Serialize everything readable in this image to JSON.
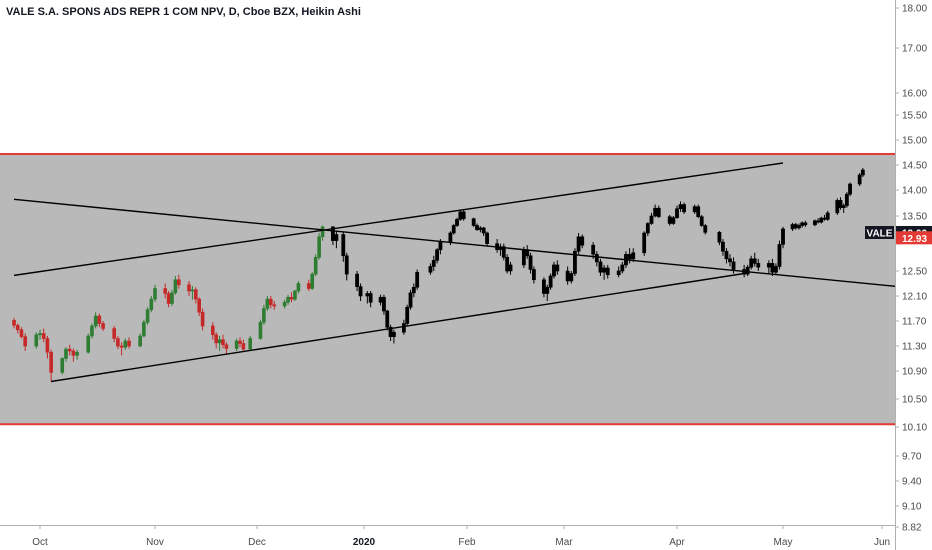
{
  "chart_data": {
    "type": "candlestick",
    "title": "VALE S.A. SPONS ADS REPR 1 COM NPV, D, Cboe BZX, Heikin Ashi",
    "y_ticks": [
      "18.00",
      "17.00",
      "16.00",
      "15.50",
      "15.00",
      "14.50",
      "14.00",
      "13.50",
      "12.50",
      "12.10",
      "11.70",
      "11.30",
      "10.90",
      "10.50",
      "10.10",
      "9.70",
      "9.40",
      "9.10",
      "8.82"
    ],
    "x_ticks": [
      {
        "label": "Oct",
        "bold": false
      },
      {
        "label": "Nov",
        "bold": false
      },
      {
        "label": "Dec",
        "bold": false
      },
      {
        "label": "2020",
        "bold": true
      },
      {
        "label": "Feb",
        "bold": false
      },
      {
        "label": "Mar",
        "bold": false
      },
      {
        "label": "Apr",
        "bold": false
      },
      {
        "label": "May",
        "bold": false
      },
      {
        "label": "Jun",
        "bold": false
      }
    ],
    "ylim": [
      8.82,
      18.2
    ],
    "price_labels": [
      {
        "symbol": "VALE",
        "value": "13.00",
        "color": "#131722"
      },
      {
        "symbol": "",
        "value": "12.93",
        "color": "#e53935"
      }
    ],
    "range_band": {
      "upper": 14.72,
      "lower": 10.14,
      "color": "#b9b9b9",
      "border_color": "#e53935"
    },
    "trendlines": [
      {
        "from": [
          "2019-09-24",
          13.82
        ],
        "to": [
          "2020-06-10",
          12.23
        ]
      },
      {
        "from": [
          "2019-09-24",
          12.43
        ],
        "to": [
          "2020-05-01",
          14.54
        ]
      },
      {
        "from": [
          "2019-10-04",
          10.75
        ],
        "to": [
          "2020-04-20",
          12.46
        ]
      }
    ],
    "ohlc_phase1": [
      [
        "2019-09-24",
        11.71,
        11.75,
        11.58,
        11.63
      ],
      [
        "2019-09-25",
        11.63,
        11.66,
        11.5,
        11.56
      ],
      [
        "2019-09-26",
        11.56,
        11.6,
        11.42,
        11.45
      ],
      [
        "2019-09-27",
        11.45,
        11.5,
        11.22,
        11.3
      ],
      [
        "2019-09-30",
        11.3,
        11.52,
        11.26,
        11.48
      ],
      [
        "2019-10-01",
        11.48,
        11.56,
        11.4,
        11.5
      ],
      [
        "2019-10-02",
        11.5,
        11.58,
        11.36,
        11.42
      ],
      [
        "2019-10-03",
        11.42,
        11.46,
        11.1,
        11.2
      ],
      [
        "2019-10-04",
        11.2,
        11.24,
        10.75,
        10.88
      ],
      [
        "2019-10-07",
        10.88,
        11.12,
        10.85,
        11.1
      ],
      [
        "2019-10-08",
        11.1,
        11.28,
        11.05,
        11.25
      ],
      [
        "2019-10-09",
        11.25,
        11.32,
        11.15,
        11.22
      ],
      [
        "2019-10-10",
        11.22,
        11.26,
        11.05,
        11.15
      ],
      [
        "2019-10-11",
        11.15,
        11.24,
        11.08,
        11.2
      ],
      [
        "2019-10-14",
        11.2,
        11.5,
        11.18,
        11.46
      ],
      [
        "2019-10-15",
        11.46,
        11.66,
        11.42,
        11.62
      ],
      [
        "2019-10-16",
        11.62,
        11.84,
        11.58,
        11.78
      ],
      [
        "2019-10-17",
        11.78,
        11.82,
        11.6,
        11.66
      ],
      [
        "2019-10-18",
        11.66,
        11.7,
        11.54,
        11.58
      ],
      [
        "2019-10-21",
        11.58,
        11.62,
        11.36,
        11.42
      ],
      [
        "2019-10-22",
        11.42,
        11.46,
        11.25,
        11.3
      ],
      [
        "2019-10-23",
        11.3,
        11.36,
        11.15,
        11.28
      ],
      [
        "2019-10-24",
        11.28,
        11.42,
        11.24,
        11.38
      ],
      [
        "2019-10-25",
        11.38,
        11.44,
        11.26,
        11.3
      ],
      [
        "2019-10-28",
        11.3,
        11.5,
        11.28,
        11.46
      ],
      [
        "2019-10-29",
        11.46,
        11.72,
        11.44,
        11.68
      ],
      [
        "2019-10-30",
        11.68,
        11.92,
        11.64,
        11.88
      ],
      [
        "2019-10-31",
        11.88,
        12.1,
        11.84,
        12.05
      ],
      [
        "2019-11-01",
        12.05,
        12.28,
        12.0,
        12.22
      ],
      [
        "2019-11-04",
        12.22,
        12.3,
        12.06,
        12.14
      ],
      [
        "2019-11-05",
        12.14,
        12.18,
        11.92,
        11.98
      ],
      [
        "2019-11-06",
        11.98,
        12.2,
        11.94,
        12.15
      ],
      [
        "2019-11-07",
        12.15,
        12.42,
        12.12,
        12.36
      ],
      [
        "2019-11-08",
        12.36,
        12.44,
        12.22,
        12.28
      ],
      [
        "2019-11-11",
        12.28,
        12.34,
        12.1,
        12.18
      ],
      [
        "2019-11-12",
        12.18,
        12.26,
        12.04,
        12.2
      ],
      [
        "2019-11-13",
        12.2,
        12.24,
        11.98,
        12.05
      ],
      [
        "2019-11-14",
        12.05,
        12.08,
        11.78,
        11.84
      ],
      [
        "2019-11-15",
        11.84,
        11.9,
        11.55,
        11.62
      ],
      [
        "2019-11-18",
        11.62,
        11.68,
        11.4,
        11.48
      ],
      [
        "2019-11-19",
        11.48,
        11.52,
        11.26,
        11.35
      ],
      [
        "2019-11-20",
        11.35,
        11.46,
        11.22,
        11.4
      ],
      [
        "2019-11-21",
        11.4,
        11.48,
        11.26,
        11.32
      ],
      [
        "2019-11-22",
        11.32,
        11.36,
        11.18,
        11.26
      ],
      [
        "2019-11-25",
        11.26,
        11.42,
        11.22,
        11.38
      ],
      [
        "2019-11-26",
        11.38,
        11.44,
        11.28,
        11.34
      ],
      [
        "2019-11-27",
        11.34,
        11.4,
        11.2,
        11.25
      ],
      [
        "2019-11-29",
        11.25,
        11.46,
        11.22,
        11.42
      ],
      [
        "2019-12-02",
        11.42,
        11.72,
        11.4,
        11.68
      ],
      [
        "2019-12-03",
        11.68,
        11.96,
        11.64,
        11.9
      ],
      [
        "2019-12-04",
        11.9,
        12.1,
        11.86,
        12.05
      ],
      [
        "2019-12-05",
        12.05,
        12.1,
        11.9,
        11.96
      ],
      [
        "2019-12-06",
        11.96,
        12.02,
        11.88,
        11.94
      ],
      [
        "2019-12-09",
        11.94,
        12.04,
        11.9,
        12.0
      ],
      [
        "2019-12-10",
        12.0,
        12.12,
        11.96,
        12.08
      ],
      [
        "2019-12-11",
        12.08,
        12.16,
        12.0,
        12.05
      ],
      [
        "2019-12-12",
        12.05,
        12.2,
        12.02,
        12.18
      ],
      [
        "2019-12-13",
        12.18,
        12.34,
        12.14,
        12.3
      ],
      [
        "2019-12-16",
        12.3,
        12.36,
        12.18,
        12.22
      ],
      [
        "2019-12-17",
        12.22,
        12.48,
        12.2,
        12.45
      ],
      [
        "2019-12-18",
        12.45,
        12.72,
        12.42,
        12.68
      ],
      [
        "2019-12-19",
        12.68,
        13.0,
        12.65,
        12.95
      ],
      [
        "2019-12-20",
        12.95,
        13.22,
        12.9,
        13.18
      ]
    ],
    "ohlc_phase2": [
      [
        "2019-12-23",
        13.18,
        13.2,
        12.84,
        12.9
      ],
      [
        "2019-12-24",
        12.9,
        13.05,
        12.8,
        12.98
      ],
      [
        "2019-12-26",
        12.98,
        13.02,
        12.62,
        12.7
      ],
      [
        "2019-12-27",
        12.7,
        12.74,
        12.35,
        12.45
      ],
      [
        "2019-12-30",
        12.45,
        12.5,
        12.18,
        12.25
      ],
      [
        "2019-12-31",
        12.25,
        12.3,
        12.02,
        12.1
      ],
      [
        "2020-01-02",
        12.1,
        12.18,
        11.98,
        12.14
      ],
      [
        "2020-01-03",
        12.14,
        12.18,
        11.92,
        12.0
      ],
      [
        "2020-01-06",
        12.0,
        12.12,
        11.95,
        12.08
      ],
      [
        "2020-01-07",
        12.08,
        12.12,
        11.8,
        11.86
      ],
      [
        "2020-01-08",
        11.86,
        11.88,
        11.55,
        11.6
      ],
      [
        "2020-01-09",
        11.6,
        11.64,
        11.38,
        11.45
      ],
      [
        "2020-01-10",
        11.45,
        11.56,
        11.34,
        11.52
      ],
      [
        "2020-01-13",
        11.52,
        11.72,
        11.48,
        11.66
      ],
      [
        "2020-01-14",
        11.66,
        11.96,
        11.62,
        11.92
      ],
      [
        "2020-01-15",
        11.92,
        12.2,
        11.88,
        12.15
      ],
      [
        "2020-01-16",
        12.15,
        12.3,
        12.08,
        12.24
      ],
      [
        "2020-01-17",
        12.24,
        12.52,
        12.2,
        12.48
      ],
      [
        "2020-01-21",
        12.48,
        12.6,
        12.44,
        12.56
      ],
      [
        "2020-01-22",
        12.56,
        12.7,
        12.5,
        12.64
      ],
      [
        "2020-01-23",
        12.64,
        12.8,
        12.6,
        12.78
      ],
      [
        "2020-01-24",
        12.78,
        12.92,
        12.72,
        12.88
      ],
      [
        "2020-01-27",
        12.88,
        13.05,
        12.84,
        13.0
      ],
      [
        "2020-01-28",
        13.0,
        13.26,
        12.98,
        13.22
      ],
      [
        "2020-01-29",
        13.22,
        13.45,
        13.18,
        13.4
      ],
      [
        "2020-01-30",
        13.4,
        13.62,
        13.36,
        13.58
      ],
      [
        "2020-01-31",
        13.58,
        13.62,
        13.36,
        13.42
      ],
      [
        "2020-02-03",
        13.42,
        13.45,
        13.18,
        13.22
      ],
      [
        "2020-02-04",
        13.22,
        13.28,
        13.06,
        13.1
      ],
      [
        "2020-02-05",
        13.1,
        13.2,
        13.02,
        13.15
      ],
      [
        "2020-02-06",
        13.15,
        13.18,
        12.96,
        13.0
      ],
      [
        "2020-02-07",
        13.0,
        13.04,
        12.82,
        12.86
      ],
      [
        "2020-02-10",
        12.86,
        12.92,
        12.74,
        12.78
      ],
      [
        "2020-02-11",
        12.78,
        12.86,
        12.7,
        12.82
      ],
      [
        "2020-02-12",
        12.82,
        12.86,
        12.64,
        12.68
      ],
      [
        "2020-02-13",
        12.68,
        12.72,
        12.46,
        12.5
      ],
      [
        "2020-02-14",
        12.5,
        12.62,
        12.44,
        12.58
      ],
      [
        "2020-02-18",
        12.58,
        12.82,
        12.54,
        12.78
      ],
      [
        "2020-02-19",
        12.78,
        12.84,
        12.66,
        12.7
      ],
      [
        "2020-02-20",
        12.7,
        12.74,
        12.46,
        12.52
      ],
      [
        "2020-02-21",
        12.52,
        12.56,
        12.3,
        12.36
      ],
      [
        "2020-02-24",
        12.36,
        12.4,
        12.08,
        12.14
      ],
      [
        "2020-02-25",
        12.14,
        12.28,
        12.02,
        12.24
      ],
      [
        "2020-02-26",
        12.24,
        12.46,
        12.2,
        12.42
      ],
      [
        "2020-02-27",
        12.42,
        12.62,
        12.38,
        12.58
      ],
      [
        "2020-02-28",
        12.58,
        12.64,
        12.44,
        12.5
      ],
      [
        "2020-03-02",
        12.5,
        12.56,
        12.28,
        12.34
      ],
      [
        "2020-03-03",
        12.34,
        12.5,
        12.3,
        12.46
      ],
      [
        "2020-03-04",
        12.46,
        12.8,
        12.42,
        12.76
      ],
      [
        "2020-03-05",
        12.76,
        13.0,
        12.72,
        12.95
      ],
      [
        "2020-03-06",
        12.95,
        12.98,
        12.8,
        12.84
      ],
      [
        "2020-03-09",
        12.84,
        12.88,
        12.66,
        12.72
      ],
      [
        "2020-03-10",
        12.72,
        12.76,
        12.56,
        12.62
      ],
      [
        "2020-03-11",
        12.62,
        12.66,
        12.42,
        12.48
      ],
      [
        "2020-03-12",
        12.48,
        12.58,
        12.36,
        12.54
      ],
      [
        "2020-03-13",
        12.54,
        12.58,
        12.38,
        12.44
      ],
      [
        "2020-03-16",
        12.44,
        12.56,
        12.4,
        12.5
      ],
      [
        "2020-03-17",
        12.5,
        12.62,
        12.46,
        12.58
      ],
      [
        "2020-03-18",
        12.58,
        12.76,
        12.54,
        12.72
      ],
      [
        "2020-03-19",
        12.72,
        12.8,
        12.6,
        12.66
      ],
      [
        "2020-03-20",
        12.66,
        12.8,
        12.62,
        12.74
      ]
    ],
    "ohlc_phase3": [
      [
        "2020-03-23",
        12.74,
        13.05,
        12.7,
        13.0
      ],
      [
        "2020-03-24",
        13.0,
        13.32,
        12.96,
        13.28
      ],
      [
        "2020-03-25",
        13.28,
        13.56,
        13.24,
        13.5
      ],
      [
        "2020-03-26",
        13.5,
        13.72,
        13.46,
        13.65
      ],
      [
        "2020-03-27",
        13.65,
        13.7,
        13.44,
        13.48
      ],
      [
        "2020-03-30",
        13.48,
        13.52,
        13.22,
        13.28
      ],
      [
        "2020-03-31",
        13.28,
        13.5,
        13.24,
        13.45
      ],
      [
        "2020-04-01",
        13.45,
        13.7,
        13.42,
        13.64
      ],
      [
        "2020-04-02",
        13.64,
        13.78,
        13.58,
        13.72
      ],
      [
        "2020-04-03",
        13.72,
        13.76,
        13.54,
        13.58
      ],
      [
        "2020-04-06",
        13.58,
        13.72,
        13.54,
        13.68
      ],
      [
        "2020-04-07",
        13.68,
        13.72,
        13.44,
        13.48
      ],
      [
        "2020-04-08",
        13.48,
        13.52,
        13.18,
        13.22
      ],
      [
        "2020-04-09",
        13.22,
        13.26,
        12.98,
        13.02
      ],
      [
        "2020-04-13",
        13.02,
        13.06,
        12.84,
        12.88
      ],
      [
        "2020-04-14",
        12.88,
        12.92,
        12.7,
        12.76
      ],
      [
        "2020-04-15",
        12.76,
        12.8,
        12.6,
        12.66
      ],
      [
        "2020-04-16",
        12.66,
        12.72,
        12.56,
        12.62
      ],
      [
        "2020-04-17",
        12.62,
        12.68,
        12.46,
        12.52
      ],
      [
        "2020-04-20",
        12.52,
        12.58,
        12.4,
        12.45
      ],
      [
        "2020-04-21",
        12.45,
        12.58,
        12.42,
        12.55
      ],
      [
        "2020-04-22",
        12.55,
        12.7,
        12.52,
        12.66
      ],
      [
        "2020-04-23",
        12.66,
        12.74,
        12.56,
        12.6
      ],
      [
        "2020-04-24",
        12.6,
        12.66,
        12.5,
        12.55
      ],
      [
        "2020-04-27",
        12.55,
        12.64,
        12.46,
        12.6
      ],
      [
        "2020-04-28",
        12.6,
        12.66,
        12.42,
        12.48
      ],
      [
        "2020-04-29",
        12.48,
        12.6,
        12.44,
        12.56
      ],
      [
        "2020-04-30",
        12.56,
        12.9,
        12.52,
        12.85
      ],
      [
        "2020-05-01",
        12.85,
        13.18,
        12.8,
        13.12
      ],
      [
        "2020-05-04",
        13.12,
        13.3,
        13.06,
        13.25
      ],
      [
        "2020-05-05",
        13.25,
        13.3,
        13.1,
        13.15
      ],
      [
        "2020-05-06",
        13.15,
        13.28,
        13.1,
        13.22
      ],
      [
        "2020-05-07",
        13.22,
        13.34,
        13.16,
        13.3
      ],
      [
        "2020-05-08",
        13.3,
        13.36,
        13.18,
        13.24
      ],
      [
        "2020-05-11",
        13.24,
        13.4,
        13.2,
        13.36
      ],
      [
        "2020-05-12",
        13.36,
        13.44,
        13.28,
        13.32
      ],
      [
        "2020-05-13",
        13.32,
        13.48,
        13.28,
        13.44
      ],
      [
        "2020-05-14",
        13.44,
        13.52,
        13.36,
        13.4
      ],
      [
        "2020-05-15",
        13.4,
        13.6,
        13.36,
        13.56
      ],
      [
        "2020-05-18",
        13.56,
        13.84,
        13.52,
        13.8
      ],
      [
        "2020-05-19",
        13.8,
        13.86,
        13.62,
        13.66
      ],
      [
        "2020-05-20",
        13.66,
        13.74,
        13.56,
        13.7
      ],
      [
        "2020-05-21",
        13.7,
        13.96,
        13.66,
        13.92
      ],
      [
        "2020-05-22",
        13.92,
        14.15,
        13.88,
        14.12
      ],
      [
        "2020-05-25",
        14.12,
        14.34,
        14.08,
        14.3
      ],
      [
        "2020-05-26",
        14.3,
        14.44,
        14.26,
        14.4
      ]
    ]
  },
  "colors": {
    "background": "#ffffff",
    "band": "#b9b9b9",
    "band_border": "#e53935",
    "up": "#2e7d32",
    "down": "#c62828",
    "line": "#000000",
    "axis_text": "#4a4a4a",
    "axis_line": "#b0b0b0"
  }
}
